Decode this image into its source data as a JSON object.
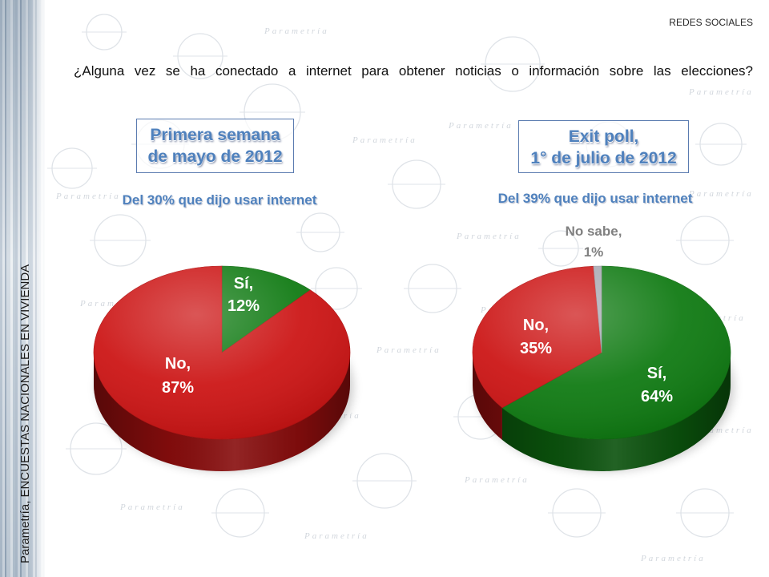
{
  "header": {
    "section": "REDES SOCIALES",
    "question": "¿Alguna vez se ha conectado a internet para obtener noticias o información sobre las elecciones?"
  },
  "sidebar": {
    "caption": "Parametría, ENCUESTAS NACIONALES EN VIVIENDA"
  },
  "watermark": {
    "text": "Parametría"
  },
  "colors": {
    "title_text": "#4f81bd",
    "title_border": "#5a7bb0",
    "watermark": "#dfe3e8"
  },
  "chart_data": [
    {
      "type": "pie",
      "title": [
        "Primera semana",
        "de mayo de 2012"
      ],
      "subtitle": "Del 30% que dijo usar internet",
      "unit": "%",
      "slices": [
        {
          "label": "Sí",
          "value": 12,
          "color": "#0f7a12",
          "label_color": "#ffffff"
        },
        {
          "label": "No",
          "value": 87,
          "color": "#cc1414",
          "label_color": "#ffffff"
        }
      ]
    },
    {
      "type": "pie",
      "title": [
        "Exit poll,",
        "1° de julio de 2012"
      ],
      "subtitle": "Del 39% que dijo usar internet",
      "unit": "%",
      "slices": [
        {
          "label": "Sí",
          "value": 64,
          "color": "#0f7a12",
          "label_color": "#ffffff"
        },
        {
          "label": "No",
          "value": 35,
          "color": "#cc1414",
          "label_color": "#ffffff"
        },
        {
          "label": "No sabe",
          "value": 1,
          "color": "#a8a8b2",
          "label_color": "#808080"
        }
      ]
    }
  ]
}
